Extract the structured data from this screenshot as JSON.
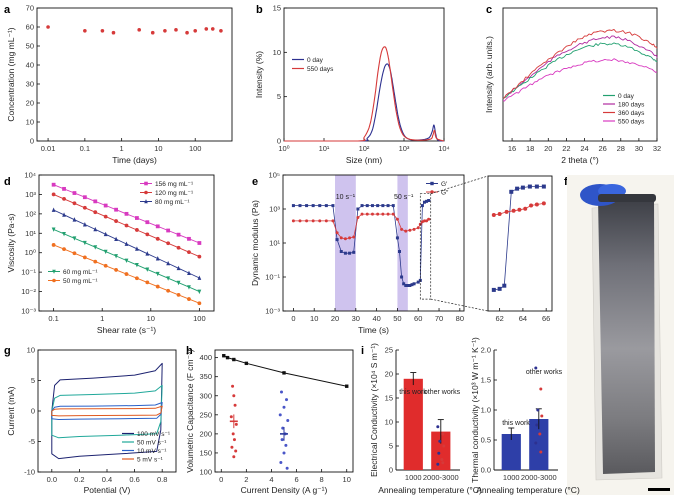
{
  "colors": {
    "red": "#d63a3a",
    "blue": "#2d3190",
    "green": "#2aa36b",
    "purple": "#b02aa0",
    "orange": "#f07020",
    "magenta": "#d83ac0",
    "navy": "#2c3a8c",
    "teal": "#22a070",
    "band": "#cfc3ee",
    "bar": "#e02c2c",
    "barBlue": "#2e3fa8",
    "scaleBar": "#000000"
  },
  "panel_labels": [
    "a",
    "b",
    "c",
    "d",
    "e",
    "f",
    "g",
    "h",
    "i"
  ],
  "photo": {
    "icon": "rolled-film-photo"
  },
  "chart_data": [
    {
      "id": "a",
      "type": "scatter",
      "xlabel": "Time (days)",
      "ylabel": "Concentration (mg mL⁻¹)",
      "xscale": "log",
      "xlim": [
        0.005,
        1000
      ],
      "ylim": [
        0,
        70
      ],
      "xticks": [
        "0.01",
        "0.1",
        "1",
        "10",
        "100"
      ],
      "yticks": [
        "0",
        "10",
        "20",
        "30",
        "40",
        "50",
        "60",
        "70"
      ],
      "x": [
        0.01,
        0.1,
        0.3,
        0.6,
        3,
        7,
        15,
        30,
        60,
        100,
        200,
        300,
        500
      ],
      "y": [
        60,
        58,
        58,
        57,
        58.5,
        57,
        58,
        58.5,
        57,
        58,
        59,
        59,
        58
      ]
    },
    {
      "id": "b",
      "type": "line",
      "xlabel": "Size (nm)",
      "ylabel": "Intensity (%)",
      "xscale": "log",
      "xlim": [
        1,
        10000
      ],
      "ylim": [
        0,
        15
      ],
      "xticks": [
        "10⁰",
        "10¹",
        "10²",
        "10³",
        "10⁴"
      ],
      "yticks": [
        "0",
        "5",
        "10",
        "15"
      ],
      "legend": [
        "0 day",
        "550 days"
      ],
      "series": [
        {
          "name": "0 day",
          "x": [
            1,
            80,
            120,
            160,
            200,
            260,
            320,
            380,
            440,
            500,
            600,
            720,
            900,
            1200,
            2000,
            4000,
            5000,
            5600,
            6200,
            7000,
            10000
          ],
          "y": [
            0,
            0,
            0.3,
            1.2,
            3.2,
            6.4,
            8.2,
            8.7,
            8.2,
            7.0,
            4.8,
            2.7,
            1.1,
            0.3,
            0.1,
            0.3,
            1.0,
            1.8,
            0.8,
            0.1,
            0
          ]
        },
        {
          "name": "550 days",
          "x": [
            1,
            70,
            100,
            140,
            180,
            230,
            280,
            340,
            390,
            440,
            520,
            640,
            800,
            1100,
            2000,
            4500,
            5300,
            5800,
            6500,
            10000
          ],
          "y": [
            0,
            0,
            0.4,
            1.8,
            4.5,
            8.2,
            10.2,
            10.6,
            9.8,
            8.4,
            6.0,
            3.3,
            1.4,
            0.4,
            0.1,
            0.2,
            0.7,
            1.2,
            0.3,
            0
          ]
        }
      ]
    },
    {
      "id": "c",
      "type": "line",
      "xlabel": "2 theta (°)",
      "ylabel": "Intensity (arb. units.)",
      "xlim": [
        15,
        32
      ],
      "ylim": [
        0,
        1
      ],
      "xticks": [
        "16",
        "18",
        "20",
        "22",
        "24",
        "26",
        "28",
        "30",
        "32"
      ],
      "legend": [
        "0 day",
        "180 days",
        "360 days",
        "550 days"
      ],
      "series": [
        {
          "name": "0 day",
          "x": [
            15,
            17,
            19,
            21,
            23,
            25,
            27,
            29,
            31,
            32
          ],
          "y": [
            0.32,
            0.42,
            0.52,
            0.61,
            0.68,
            0.72,
            0.73,
            0.7,
            0.64,
            0.6
          ]
        },
        {
          "name": "180 days",
          "x": [
            15,
            17,
            19,
            21,
            23,
            25,
            27,
            29,
            31,
            32
          ],
          "y": [
            0.32,
            0.43,
            0.54,
            0.64,
            0.71,
            0.76,
            0.78,
            0.75,
            0.68,
            0.63
          ]
        },
        {
          "name": "360 days",
          "x": [
            15,
            17,
            19,
            21,
            23,
            25,
            27,
            29,
            31,
            32
          ],
          "y": [
            0.32,
            0.44,
            0.56,
            0.66,
            0.75,
            0.81,
            0.83,
            0.81,
            0.75,
            0.7
          ]
        },
        {
          "name": "550 days",
          "x": [
            15,
            17,
            19,
            21,
            23,
            25,
            27,
            29,
            31,
            32
          ],
          "y": [
            0.3,
            0.38,
            0.46,
            0.52,
            0.57,
            0.6,
            0.61,
            0.59,
            0.55,
            0.52
          ]
        }
      ]
    },
    {
      "id": "d",
      "type": "line",
      "xlabel": "Shear rate (s⁻¹)",
      "ylabel": "Viscosity (Pa·s)",
      "xscale": "log",
      "yscale": "log",
      "xlim": [
        0.05,
        200
      ],
      "ylim": [
        -3,
        4
      ],
      "xticks": [
        "0.1",
        "1",
        "10",
        "100"
      ],
      "yticks": [
        "10⁻³",
        "10⁻²",
        "10⁻¹",
        "10⁰",
        "10¹",
        "10²",
        "10³",
        "10⁴"
      ],
      "legend": [
        "156 mg mL⁻¹",
        "120 mg mL⁻¹",
        "80 mg mL⁻¹",
        "60 mg mL⁻¹",
        "50 mg mL⁻¹"
      ],
      "series": [
        {
          "name": "156 mg mL⁻¹",
          "log_start": 3.5,
          "log_end": 0.5,
          "marker": "square"
        },
        {
          "name": "120 mg mL⁻¹",
          "log_start": 3.0,
          "log_end": -0.2,
          "marker": "circle"
        },
        {
          "name": "80 mg mL⁻¹",
          "log_start": 2.2,
          "log_end": -1.3,
          "marker": "triangle"
        },
        {
          "name": "60 mg mL⁻¹",
          "log_start": 1.2,
          "log_end": -2.0,
          "marker": "triangle-down"
        },
        {
          "name": "50 mg mL⁻¹",
          "log_start": 0.4,
          "log_end": -2.6,
          "marker": "circle"
        }
      ]
    },
    {
      "id": "e",
      "type": "line",
      "xlabel": "Time (s)",
      "ylabel": "Dynamic modulus (Pa)",
      "yscale": "log",
      "xlim": [
        -5,
        82
      ],
      "ylim": [
        -3,
        5
      ],
      "xticks": [
        "0",
        "10",
        "20",
        "30",
        "40",
        "50",
        "60",
        "70",
        "80"
      ],
      "yticks": [
        "10⁻³",
        "10⁻¹",
        "10¹",
        "10³",
        "10⁵"
      ],
      "legend": [
        "G′",
        "G″"
      ],
      "annotations": [
        "10 s⁻¹",
        "50 s⁻¹"
      ],
      "bands": [
        [
          20,
          30
        ],
        [
          50,
          55
        ]
      ],
      "series": [
        {
          "name": "G′",
          "x": [
            0,
            19,
            21,
            23,
            25,
            27,
            29,
            31,
            33,
            48,
            50,
            51,
            52,
            53,
            54,
            55,
            56,
            57,
            58,
            60,
            61,
            62,
            63,
            64,
            65,
            66
          ],
          "logy": [
            3.2,
            3.2,
            1.2,
            0.5,
            0.4,
            0.4,
            0.45,
            3.0,
            3.2,
            3.2,
            1.3,
            0.5,
            -1.0,
            -1.4,
            -1.5,
            -1.5,
            -1.5,
            -1.45,
            -1.4,
            -1.3,
            -1.2,
            3.2,
            3.4,
            3.45,
            3.5,
            3.5
          ]
        },
        {
          "name": "G″",
          "x": [
            0,
            19,
            21,
            23,
            25,
            27,
            29,
            31,
            33,
            48,
            50,
            52,
            54,
            56,
            58,
            60,
            61,
            62,
            63,
            64,
            65,
            66
          ],
          "logy": [
            2.3,
            2.3,
            1.6,
            1.3,
            1.25,
            1.3,
            1.35,
            2.5,
            2.7,
            2.7,
            2.4,
            1.8,
            1.7,
            1.75,
            1.8,
            1.9,
            2.1,
            2.25,
            2.3,
            2.3,
            2.4,
            2.4
          ]
        }
      ],
      "inset": {
        "xticks": [
          "62",
          "64",
          "66"
        ],
        "xlim": [
          61,
          66.5
        ]
      }
    },
    {
      "id": "g",
      "type": "line",
      "xlabel": "Potential (V)",
      "ylabel": "Current (mA)",
      "xlim": [
        -0.1,
        0.9
      ],
      "ylim": [
        -10,
        10
      ],
      "xticks": [
        "0.0",
        "0.2",
        "0.4",
        "0.6",
        "0.8"
      ],
      "yticks": [
        "-10",
        "-5",
        "0",
        "5",
        "10"
      ],
      "legend": [
        "100 mV s⁻¹",
        "50 mV s⁻¹",
        "10 mV s⁻¹",
        "5 mV s⁻¹"
      ],
      "series": [
        {
          "name": "100 mV s⁻¹",
          "upper": 6.0,
          "lower": -7.8,
          "tip": 7.8
        },
        {
          "name": "50 mV s⁻¹",
          "upper": 3.0,
          "lower": -4.4,
          "tip": 4.2
        },
        {
          "name": "10 mV s⁻¹",
          "upper": 0.9,
          "lower": -1.4,
          "tip": 1.4
        },
        {
          "name": "5 mV s⁻¹",
          "upper": 0.4,
          "lower": -0.8,
          "tip": 0.8
        }
      ]
    },
    {
      "id": "h",
      "type": "scatter",
      "xlabel": "Current Density (A g⁻¹)",
      "ylabel": "Volumetric Capacitance (F cm⁻³)",
      "xlim": [
        -0.5,
        10.5
      ],
      "ylim": [
        100,
        420
      ],
      "xticks": [
        "0",
        "2",
        "4",
        "6",
        "8",
        "10"
      ],
      "yticks": [
        "100",
        "150",
        "200",
        "250",
        "300",
        "350",
        "400"
      ],
      "line": {
        "x": [
          0.2,
          0.5,
          1,
          2,
          5,
          10
        ],
        "y": [
          405,
          400,
          395,
          385,
          360,
          325
        ]
      },
      "red_points": {
        "x": [
          0.9,
          1.0,
          1.1,
          0.8,
          1.2,
          0.95,
          1.05,
          0.85,
          1.15,
          1.0
        ],
        "y": [
          325,
          300,
          275,
          245,
          225,
          200,
          185,
          165,
          155,
          140
        ]
      },
      "red_mean": {
        "x": 1.0,
        "y": 233,
        "err": 18
      },
      "blue_points": {
        "x": [
          4.8,
          5.2,
          5.0,
          4.7,
          5.3,
          4.9,
          5.1,
          4.85,
          5.15,
          5.0,
          4.75,
          5.25
        ],
        "y": [
          310,
          290,
          270,
          250,
          235,
          215,
          200,
          185,
          170,
          150,
          125,
          110
        ]
      },
      "blue_mean": {
        "x": 5.0,
        "y": 200,
        "err": 18
      }
    },
    {
      "id": "i-left",
      "type": "bar",
      "categories": [
        "1000",
        "2000-3000"
      ],
      "values": [
        19,
        8
      ],
      "errors": [
        1.3,
        2.5
      ],
      "xlabel": "Annealing temperature (°C)",
      "ylabel": "Electrical Conductivity (×10⁴ S m⁻¹)",
      "ylim": [
        0,
        25
      ],
      "yticks": [
        "0",
        "5",
        "10",
        "15",
        "20",
        "25"
      ],
      "labels": [
        "this work",
        "other works"
      ],
      "points": [
        9,
        7.5,
        6,
        5,
        3.5,
        2.2,
        1.2,
        1.5
      ]
    },
    {
      "id": "i-right",
      "type": "bar",
      "categories": [
        "1000",
        "2000-3000"
      ],
      "values": [
        0.6,
        0.85
      ],
      "errors": [
        0.1,
        0.17
      ],
      "xlabel": "Annealing temperature (°C)",
      "ylabel": "Thermal conductivity (×10³ W m⁻¹ K⁻¹)",
      "ylim": [
        0,
        2.0
      ],
      "yticks": [
        "0.0",
        "0.5",
        "1.0",
        "1.5",
        "2.0"
      ],
      "labels": [
        "this work",
        "other works"
      ],
      "points": [
        1.7,
        1.35,
        1.0,
        0.9,
        0.75,
        0.6,
        0.45,
        0.3
      ]
    }
  ]
}
